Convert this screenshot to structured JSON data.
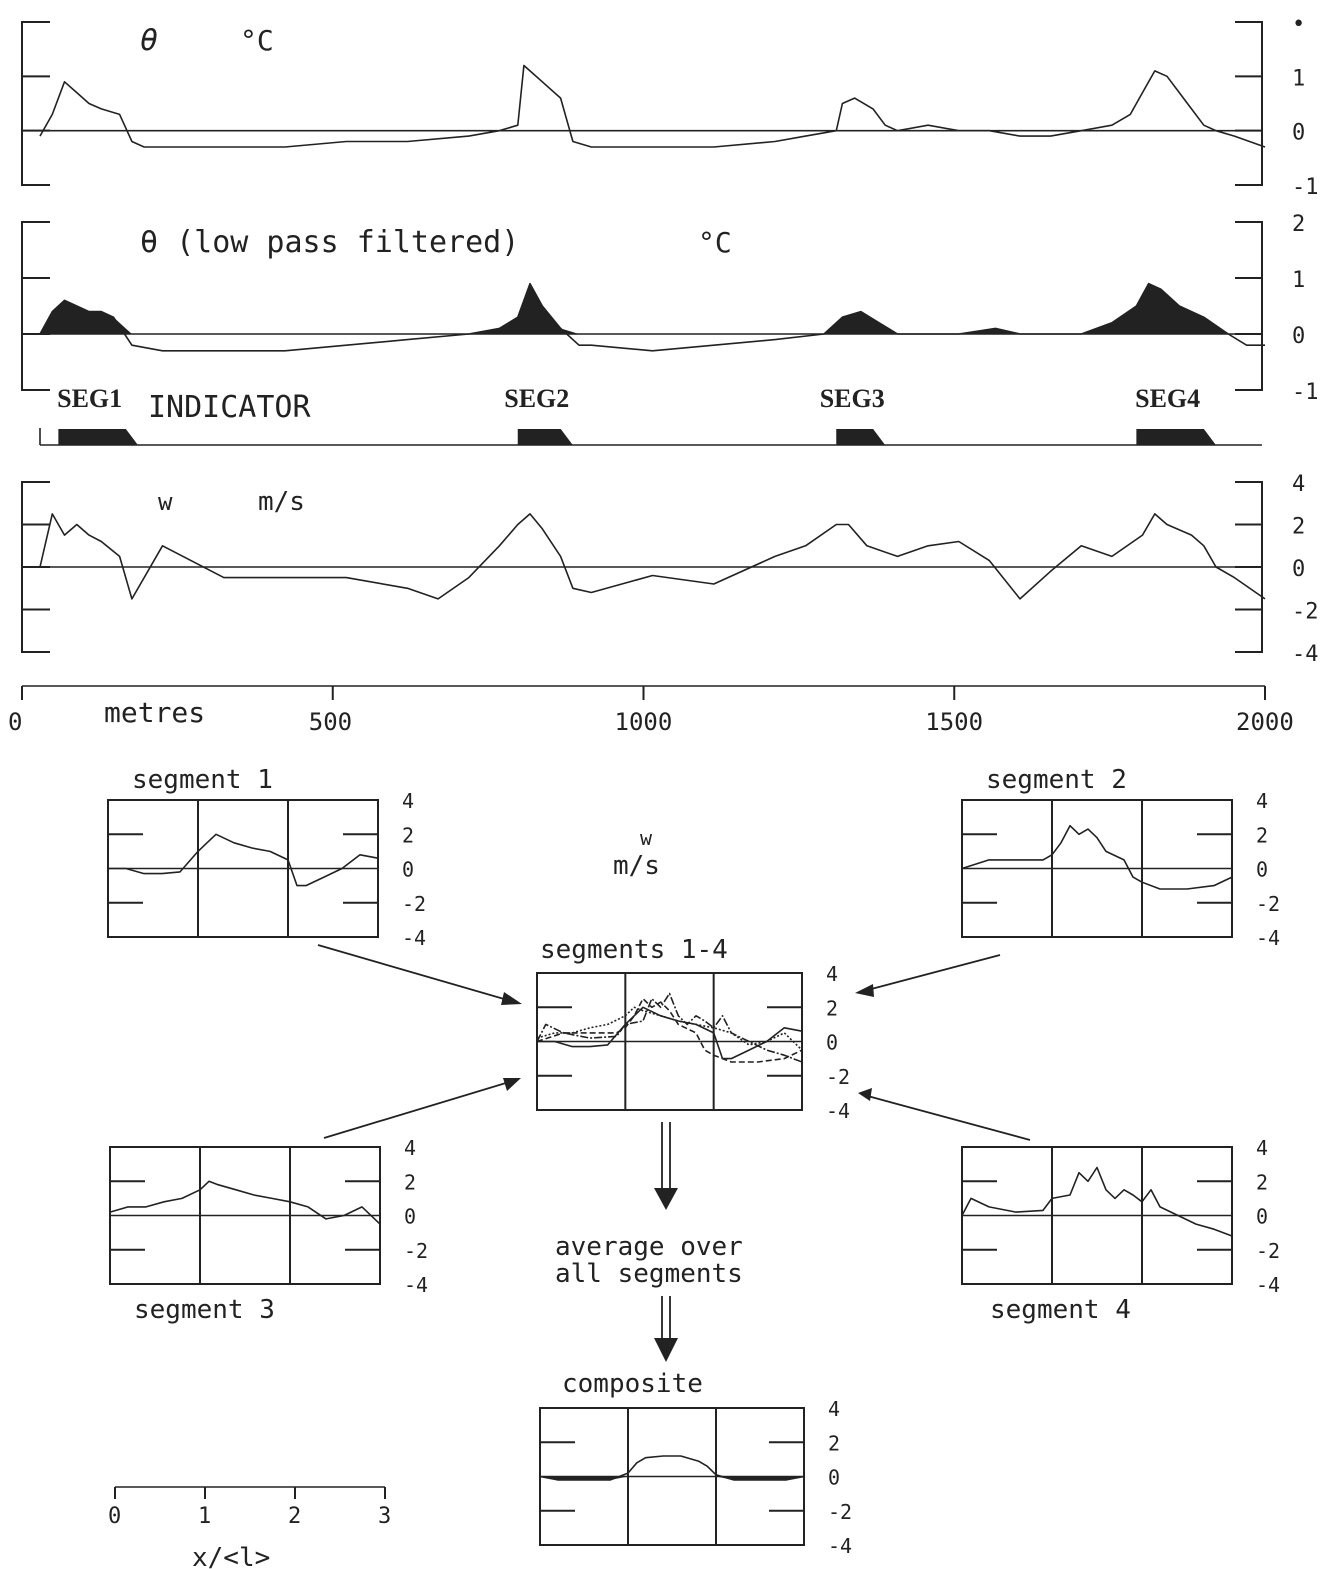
{
  "chart_data": [
    {
      "id": "theta",
      "type": "line",
      "title": "θ",
      "unit": "°C",
      "ylim": [
        -1,
        2
      ],
      "yticks": [
        "•",
        "1",
        "0",
        "-1"
      ],
      "xlim": [
        0,
        2000
      ],
      "x": [
        0,
        20,
        40,
        60,
        80,
        100,
        130,
        150,
        170,
        200,
        300,
        400,
        500,
        600,
        700,
        750,
        780,
        790,
        800,
        820,
        850,
        870,
        900,
        1000,
        1100,
        1200,
        1250,
        1300,
        1310,
        1330,
        1360,
        1380,
        1400,
        1450,
        1500,
        1550,
        1600,
        1650,
        1700,
        1750,
        1780,
        1800,
        1820,
        1840,
        1860,
        1880,
        1900,
        1920,
        1950,
        2000
      ],
      "y": [
        -0.1,
        0.3,
        0.9,
        0.7,
        0.5,
        0.4,
        0.3,
        -0.2,
        -0.3,
        -0.3,
        -0.3,
        -0.3,
        -0.2,
        -0.2,
        -0.1,
        0.0,
        0.1,
        1.2,
        1.1,
        0.9,
        0.6,
        -0.2,
        -0.3,
        -0.3,
        -0.3,
        -0.2,
        -0.1,
        0.0,
        0.5,
        0.6,
        0.4,
        0.1,
        0.0,
        0.1,
        0.0,
        0.0,
        -0.1,
        -0.1,
        0.0,
        0.1,
        0.3,
        0.7,
        1.1,
        1.0,
        0.7,
        0.4,
        0.1,
        0.0,
        -0.1,
        -0.3
      ]
    },
    {
      "id": "theta_lp",
      "type": "area",
      "title": "θ (low pass filtered)",
      "unit": "°C",
      "ylim": [
        -1,
        2
      ],
      "yticks": [
        "2",
        "1",
        "0",
        "-1"
      ],
      "xlim": [
        0,
        2000
      ],
      "x": [
        0,
        20,
        40,
        60,
        80,
        100,
        120,
        150,
        200,
        300,
        400,
        500,
        600,
        700,
        750,
        780,
        800,
        820,
        850,
        880,
        900,
        1000,
        1100,
        1200,
        1280,
        1310,
        1340,
        1370,
        1400,
        1500,
        1560,
        1600,
        1700,
        1750,
        1790,
        1810,
        1830,
        1860,
        1900,
        1940,
        1970,
        2000
      ],
      "y": [
        0.0,
        0.4,
        0.6,
        0.5,
        0.4,
        0.4,
        0.3,
        -0.2,
        -0.3,
        -0.3,
        -0.3,
        -0.2,
        -0.1,
        0.0,
        0.1,
        0.3,
        0.9,
        0.5,
        0.1,
        -0.2,
        -0.2,
        -0.3,
        -0.2,
        -0.1,
        0.0,
        0.3,
        0.4,
        0.2,
        0.0,
        0.0,
        0.1,
        0.0,
        0.0,
        0.2,
        0.5,
        0.9,
        0.8,
        0.5,
        0.3,
        0.0,
        -0.2,
        -0.2
      ]
    },
    {
      "id": "indicator",
      "type": "bar",
      "title": "INDICATOR",
      "segments": [
        {
          "name": "SEG1",
          "start": 30,
          "end": 150
        },
        {
          "name": "SEG2",
          "start": 780,
          "end": 860
        },
        {
          "name": "SEG3",
          "start": 1300,
          "end": 1370
        },
        {
          "name": "SEG4",
          "start": 1790,
          "end": 1910
        }
      ]
    },
    {
      "id": "w",
      "type": "line",
      "title": "w",
      "unit": "m/s",
      "ylim": [
        -4,
        4
      ],
      "yticks": [
        "4",
        "2",
        "0",
        "-2",
        "-4"
      ],
      "xlim": [
        0,
        2000
      ],
      "xticks": [
        "0",
        "500",
        "1000",
        "1500",
        "2000"
      ],
      "xlabel": "metres",
      "x": [
        0,
        20,
        40,
        60,
        80,
        100,
        130,
        150,
        200,
        300,
        400,
        500,
        600,
        650,
        700,
        750,
        780,
        800,
        820,
        850,
        870,
        900,
        1000,
        1100,
        1200,
        1250,
        1300,
        1320,
        1350,
        1400,
        1450,
        1500,
        1550,
        1600,
        1650,
        1700,
        1750,
        1800,
        1820,
        1840,
        1880,
        1900,
        1920,
        1950,
        2000
      ],
      "y": [
        0.0,
        2.5,
        1.5,
        2.0,
        1.5,
        1.2,
        0.5,
        -1.5,
        1.0,
        -0.5,
        -0.5,
        -0.5,
        -1.0,
        -1.5,
        -0.5,
        1.0,
        2.0,
        2.5,
        1.8,
        0.5,
        -1.0,
        -1.2,
        -0.4,
        -0.8,
        0.5,
        1.0,
        2.0,
        2.0,
        1.0,
        0.5,
        1.0,
        1.2,
        0.3,
        -1.5,
        -0.2,
        1.0,
        0.5,
        1.5,
        2.5,
        2.0,
        1.5,
        1.0,
        0.0,
        -0.5,
        -1.5
      ]
    },
    {
      "id": "seg1",
      "type": "line",
      "title": "segment 1",
      "ylim": [
        -4,
        4
      ],
      "yticks": [
        "4",
        "2",
        "0",
        "-2",
        "-4"
      ],
      "xlim": [
        0,
        3
      ],
      "x": [
        0,
        0.2,
        0.4,
        0.6,
        0.8,
        1.0,
        1.1,
        1.2,
        1.4,
        1.6,
        1.8,
        2.0,
        2.1,
        2.2,
        2.4,
        2.6,
        2.8,
        3.0
      ],
      "y": [
        0.0,
        0.0,
        -0.3,
        -0.3,
        -0.2,
        1.0,
        1.5,
        2.0,
        1.5,
        1.2,
        1.0,
        0.5,
        -1.0,
        -1.0,
        -0.5,
        0.0,
        0.8,
        0.6
      ]
    },
    {
      "id": "seg2",
      "type": "line",
      "title": "segment 2",
      "ylim": [
        -4,
        4
      ],
      "yticks": [
        "4",
        "2",
        "0",
        "-2",
        "-4"
      ],
      "xlim": [
        0,
        3
      ],
      "x": [
        0,
        0.3,
        0.6,
        0.9,
        1.0,
        1.1,
        1.2,
        1.3,
        1.4,
        1.5,
        1.6,
        1.8,
        1.9,
        2.0,
        2.2,
        2.5,
        2.8,
        3.0
      ],
      "y": [
        0.0,
        0.5,
        0.5,
        0.5,
        0.8,
        1.5,
        2.5,
        2.0,
        2.3,
        1.8,
        1.0,
        0.5,
        -0.5,
        -0.8,
        -1.2,
        -1.2,
        -1.0,
        -0.5
      ]
    },
    {
      "id": "seg3",
      "type": "line",
      "title": "segment 3",
      "ylim": [
        -4,
        4
      ],
      "yticks": [
        "4",
        "2",
        "0",
        "-2",
        "-4"
      ],
      "xlim": [
        0,
        3
      ],
      "x": [
        0,
        0.2,
        0.4,
        0.6,
        0.8,
        1.0,
        1.1,
        1.2,
        1.4,
        1.6,
        1.8,
        2.0,
        2.2,
        2.4,
        2.6,
        2.8,
        3.0
      ],
      "y": [
        0.2,
        0.5,
        0.5,
        0.8,
        1.0,
        1.5,
        2.0,
        1.8,
        1.5,
        1.2,
        1.0,
        0.8,
        0.5,
        -0.2,
        0.0,
        0.5,
        -0.5
      ]
    },
    {
      "id": "seg4",
      "type": "line",
      "title": "segment 4",
      "ylim": [
        -4,
        4
      ],
      "yticks": [
        "4",
        "2",
        "0",
        "-2",
        "-4"
      ],
      "xlim": [
        0,
        3
      ],
      "x": [
        0,
        0.1,
        0.3,
        0.6,
        0.9,
        1.0,
        1.2,
        1.3,
        1.4,
        1.5,
        1.6,
        1.7,
        1.8,
        1.9,
        2.0,
        2.1,
        2.2,
        2.4,
        2.6,
        2.8,
        3.0
      ],
      "y": [
        0.0,
        1.0,
        0.5,
        0.2,
        0.3,
        1.0,
        1.2,
        2.5,
        2.0,
        2.8,
        1.5,
        1.0,
        1.5,
        1.2,
        0.8,
        1.5,
        0.5,
        0.0,
        -0.5,
        -0.8,
        -1.2
      ]
    },
    {
      "id": "seg14",
      "type": "line",
      "title": "segments 1-4",
      "ylim": [
        -4,
        4
      ],
      "yticks": [
        "4",
        "2",
        "0",
        "-2",
        "-4"
      ],
      "xlim": [
        0,
        3
      ],
      "series_ref": [
        "seg1",
        "seg2",
        "seg3",
        "seg4"
      ]
    },
    {
      "id": "composite",
      "type": "area",
      "title": "composite",
      "ylim": [
        -4,
        4
      ],
      "yticks": [
        "4",
        "2",
        "0",
        "-2",
        "-4"
      ],
      "xlim": [
        0,
        3
      ],
      "xticks": [
        "0",
        "1",
        "2",
        "3"
      ],
      "xlabel": "x/<l>",
      "x": [
        0,
        0.2,
        0.5,
        0.8,
        1.0,
        1.1,
        1.2,
        1.4,
        1.6,
        1.8,
        1.9,
        2.0,
        2.2,
        2.5,
        2.8,
        3.0
      ],
      "y": [
        0.0,
        -0.2,
        -0.2,
        -0.2,
        0.2,
        0.8,
        1.1,
        1.2,
        1.2,
        0.9,
        0.6,
        0.1,
        -0.2,
        -0.2,
        -0.2,
        0.0
      ]
    }
  ],
  "labels": {
    "middle_w": "w",
    "middle_unit": "m/s",
    "average_line1": "average over",
    "average_line2": "all segments"
  }
}
